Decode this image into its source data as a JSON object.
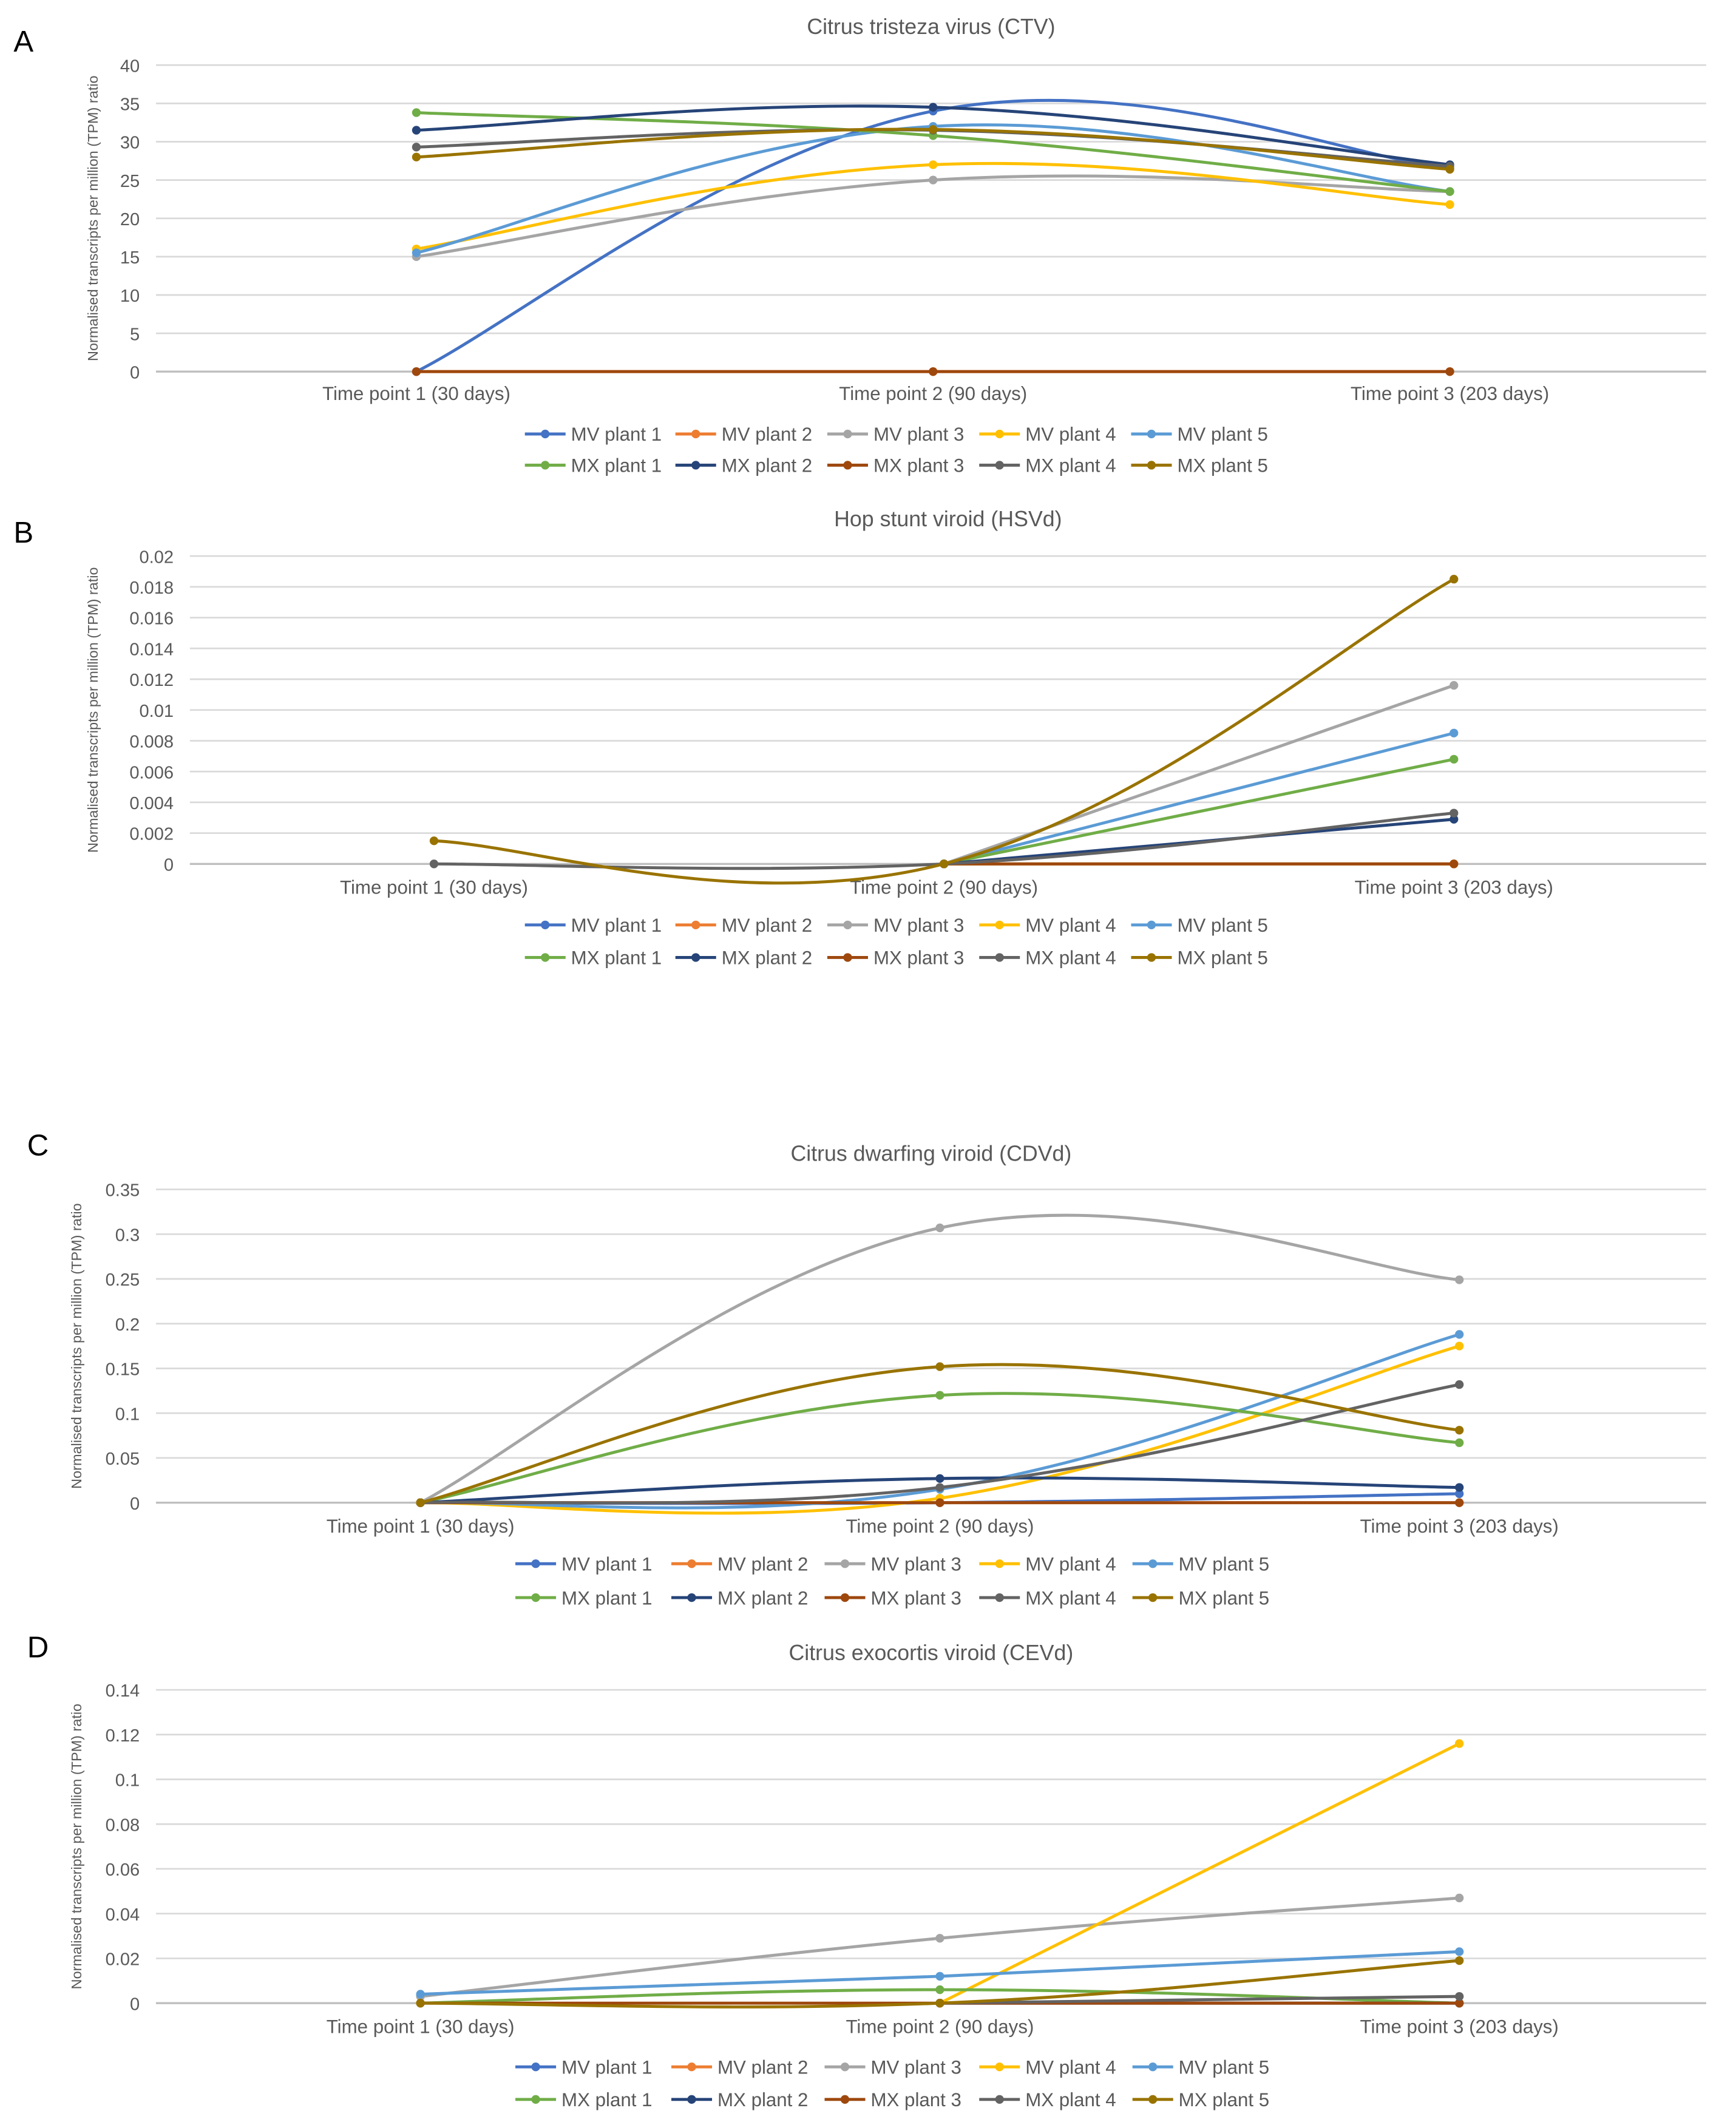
{
  "series_names": [
    "MV plant 1",
    "MV plant 2",
    "MV plant 3",
    "MV plant 4",
    "MV plant 5",
    "MX plant 1",
    "MX plant 2",
    "MX plant 3",
    "MX plant 4",
    "MX plant 5"
  ],
  "series_colors": [
    "#4472C4",
    "#ED7D31",
    "#A5A5A5",
    "#FFC000",
    "#5B9BD5",
    "#70AD47",
    "#264478",
    "#9E480E",
    "#636363",
    "#997300"
  ],
  "chart_data": [
    {
      "panel": "A",
      "type": "line",
      "title": "Citrus tristeza virus (CTV)",
      "xlabel": "",
      "ylabel": "Normalised transcripts per million (TPM) ratio",
      "categories": [
        "Time point 1 (30 days)",
        "Time point 2 (90 days)",
        "Time point 3 (203 days)"
      ],
      "ylim": [
        0,
        40
      ],
      "yticks": [
        "0",
        "5",
        "10",
        "15",
        "20",
        "25",
        "30",
        "35",
        "40"
      ],
      "grid": true,
      "legend": "bottom",
      "series": [
        {
          "name": "MV plant 1",
          "values": [
            0,
            34,
            26.5
          ]
        },
        {
          "name": "MV plant 2",
          "values": [
            0,
            0,
            0
          ]
        },
        {
          "name": "MV plant 3",
          "values": [
            15,
            25,
            23.5
          ]
        },
        {
          "name": "MV plant 4",
          "values": [
            16,
            27,
            21.8
          ]
        },
        {
          "name": "MV plant 5",
          "values": [
            15.5,
            32,
            23.5
          ]
        },
        {
          "name": "MX plant 1",
          "values": [
            33.8,
            30.8,
            23.5
          ]
        },
        {
          "name": "MX plant 2",
          "values": [
            31.5,
            34.5,
            27
          ]
        },
        {
          "name": "MX plant 3",
          "values": [
            0,
            0,
            0
          ]
        },
        {
          "name": "MX plant 4",
          "values": [
            29.3,
            31.5,
            26.8
          ]
        },
        {
          "name": "MX plant 5",
          "values": [
            28,
            31.6,
            26.4
          ]
        }
      ]
    },
    {
      "panel": "B",
      "type": "line",
      "title": "Hop stunt viroid (HSVd)",
      "xlabel": "",
      "ylabel": "Normalised transcripts per million (TPM) ratio",
      "categories": [
        "Time point 1 (30 days)",
        "Time point 2 (90 days)",
        "Time point 3 (203 days)"
      ],
      "ylim": [
        0,
        0.02
      ],
      "yticks": [
        "0",
        "0.002",
        "0.004",
        "0.006",
        "0.008",
        "0.01",
        "0.012",
        "0.014",
        "0.016",
        "0.018",
        "0.02"
      ],
      "grid": true,
      "legend": "bottom",
      "series": [
        {
          "name": "MV plant 1",
          "values": [
            null,
            0,
            0
          ]
        },
        {
          "name": "MV plant 2",
          "values": [
            null,
            0,
            0
          ]
        },
        {
          "name": "MV plant 3",
          "values": [
            null,
            0,
            0.0116
          ]
        },
        {
          "name": "MV plant 4",
          "values": [
            null,
            0,
            0
          ]
        },
        {
          "name": "MV plant 5",
          "values": [
            null,
            0,
            0.0085
          ]
        },
        {
          "name": "MX plant 1",
          "values": [
            null,
            0,
            0.0068
          ]
        },
        {
          "name": "MX plant 2",
          "values": [
            null,
            0,
            0.0029
          ]
        },
        {
          "name": "MX plant 3",
          "values": [
            null,
            0,
            0
          ]
        },
        {
          "name": "MX plant 4",
          "values": [
            0,
            0,
            0.0033
          ]
        },
        {
          "name": "MX plant 5",
          "values": [
            0.0015,
            0,
            0.0185
          ]
        }
      ]
    },
    {
      "panel": "C",
      "type": "line",
      "title": "Citrus dwarfing viroid (CDVd)",
      "xlabel": "",
      "ylabel": "Normalised transcripts per million (TPM) ratio",
      "categories": [
        "Time point 1 (30 days)",
        "Time point 2 (90 days)",
        "Time point 3 (203 days)"
      ],
      "ylim": [
        0,
        0.35
      ],
      "yticks": [
        "0",
        "0.05",
        "0.1",
        "0.15",
        "0.2",
        "0.25",
        "0.3",
        "0.35"
      ],
      "grid": true,
      "legend": "bottom",
      "series": [
        {
          "name": "MV plant 1",
          "values": [
            0,
            0,
            0.01
          ]
        },
        {
          "name": "MV plant 2",
          "values": [
            0,
            0,
            0
          ]
        },
        {
          "name": "MV plant 3",
          "values": [
            0,
            0.307,
            0.249
          ]
        },
        {
          "name": "MV plant 4",
          "values": [
            0,
            0.005,
            0.175
          ]
        },
        {
          "name": "MV plant 5",
          "values": [
            0,
            0.015,
            0.188
          ]
        },
        {
          "name": "MX plant 1",
          "values": [
            0,
            0.12,
            0.067
          ]
        },
        {
          "name": "MX plant 2",
          "values": [
            0,
            0.027,
            0.017
          ]
        },
        {
          "name": "MX plant 3",
          "values": [
            0,
            0,
            0
          ]
        },
        {
          "name": "MX plant 4",
          "values": [
            0,
            0.017,
            0.132
          ]
        },
        {
          "name": "MX plant 5",
          "values": [
            0,
            0.152,
            0.081
          ]
        }
      ]
    },
    {
      "panel": "D",
      "type": "line",
      "title": "Citrus exocortis viroid (CEVd)",
      "xlabel": "",
      "ylabel": "Normalised transcripts per million (TPM) ratio",
      "categories": [
        "Time point 1 (30 days)",
        "Time point 2 (90 days)",
        "Time point 3 (203 days)"
      ],
      "ylim": [
        0,
        0.14
      ],
      "yticks": [
        "0",
        "0.02",
        "0.04",
        "0.06",
        "0.08",
        "0.1",
        "0.12",
        "0.14"
      ],
      "grid": true,
      "legend": "bottom",
      "series": [
        {
          "name": "MV plant 1",
          "values": [
            null,
            0,
            0
          ]
        },
        {
          "name": "MV plant 2",
          "values": [
            null,
            0,
            0
          ]
        },
        {
          "name": "MV plant 3",
          "values": [
            0.003,
            0.029,
            0.047
          ]
        },
        {
          "name": "MV plant 4",
          "values": [
            null,
            0,
            0.116
          ]
        },
        {
          "name": "MV plant 5",
          "values": [
            0.004,
            0.012,
            0.023
          ]
        },
        {
          "name": "MX plant 1",
          "values": [
            0,
            0.006,
            0
          ]
        },
        {
          "name": "MX plant 2",
          "values": [
            null,
            0,
            0
          ]
        },
        {
          "name": "MX plant 3",
          "values": [
            0,
            0,
            0
          ]
        },
        {
          "name": "MX plant 4",
          "values": [
            null,
            0,
            0.003
          ]
        },
        {
          "name": "MX plant 5",
          "values": [
            0,
            0,
            0.019
          ]
        }
      ]
    }
  ]
}
